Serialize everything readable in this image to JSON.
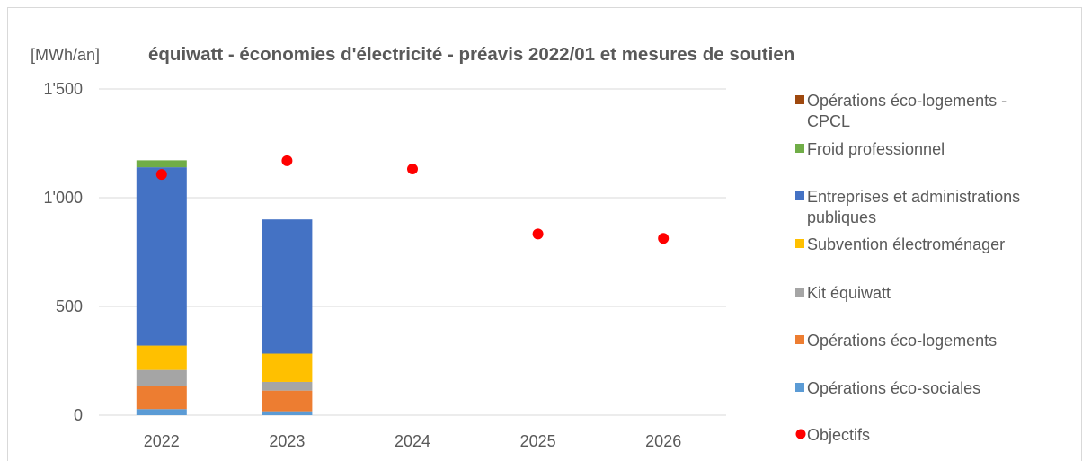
{
  "chart_data": {
    "type": "bar",
    "title": "équiwatt - économies d'électricité - préavis 2022/01 et mesures de soutien",
    "ylabel": "[MWh/an]",
    "xlabel": "",
    "stacked": true,
    "categories": [
      "2022",
      "2023",
      "2024",
      "2025",
      "2026"
    ],
    "ylim": [
      0,
      1500
    ],
    "yticks": [
      0,
      500,
      1000,
      1500
    ],
    "ytick_labels": [
      "0",
      "500",
      "1'000",
      "1'500"
    ],
    "grid": true,
    "legend_position": "right",
    "series": [
      {
        "name": "Opérations éco-sociales",
        "color": "#5b9bd5",
        "values": [
          28,
          18,
          0,
          0,
          0
        ]
      },
      {
        "name": "Opérations éco-logements",
        "color": "#ed7d31",
        "values": [
          108,
          95,
          0,
          0,
          0
        ]
      },
      {
        "name": "Kit équiwatt",
        "color": "#a5a5a5",
        "values": [
          72,
          40,
          0,
          0,
          0
        ]
      },
      {
        "name": "Subvention électroménager",
        "color": "#ffc000",
        "values": [
          112,
          130,
          0,
          0,
          0
        ]
      },
      {
        "name": "Entreprises et administrations publiques",
        "color": "#4472c4",
        "values": [
          820,
          617,
          0,
          0,
          0
        ]
      },
      {
        "name": "Froid professionnel",
        "color": "#70ad47",
        "values": [
          32,
          0,
          0,
          0,
          0
        ]
      },
      {
        "name": "Opérations éco-logements - CPCL",
        "color": "#9e480e",
        "values": [
          0,
          0,
          0,
          0,
          0
        ]
      }
    ],
    "objectifs": {
      "name": "Objectifs",
      "color": "#ff0000",
      "values": [
        1107,
        1170,
        1132,
        833,
        813
      ]
    },
    "legend": [
      {
        "label_lines": [
          "Opérations éco-logements -",
          "CPCL"
        ],
        "marker": "square",
        "color": "#9e480e"
      },
      {
        "label_lines": [
          "Froid professionnel"
        ],
        "marker": "square",
        "color": "#70ad47"
      },
      {
        "label_lines": [
          "Entreprises et administrations",
          "publiques"
        ],
        "marker": "square",
        "color": "#4472c4"
      },
      {
        "label_lines": [
          "Subvention électroménager"
        ],
        "marker": "square",
        "color": "#ffc000"
      },
      {
        "label_lines": [
          "Kit équiwatt"
        ],
        "marker": "square",
        "color": "#a5a5a5"
      },
      {
        "label_lines": [
          "Opérations éco-logements"
        ],
        "marker": "square",
        "color": "#ed7d31"
      },
      {
        "label_lines": [
          "Opérations éco-sociales"
        ],
        "marker": "square",
        "color": "#5b9bd5"
      },
      {
        "label_lines": [
          "Objectifs"
        ],
        "marker": "circle",
        "color": "#ff0000"
      }
    ],
    "gridline_color": "#d9d9d9",
    "axis_color": "#d9d9d9"
  }
}
